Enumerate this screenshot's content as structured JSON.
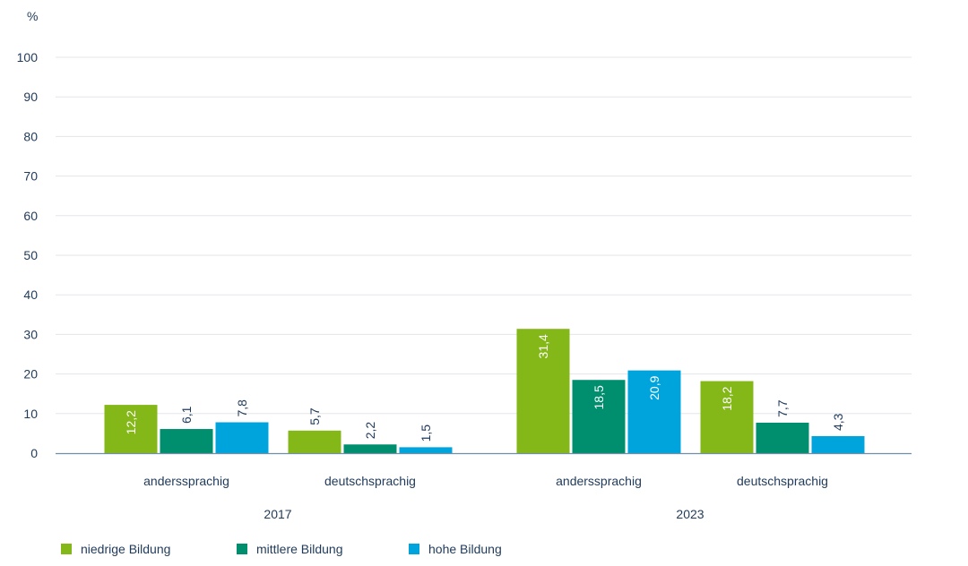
{
  "chart_data": {
    "type": "bar",
    "ylabel": "%",
    "ylim": [
      0,
      100
    ],
    "yticks": [
      0,
      10,
      20,
      30,
      40,
      50,
      60,
      70,
      80,
      90,
      100
    ],
    "grid": true,
    "groups": [
      {
        "label": "2017",
        "categories": [
          "anderssprachig",
          "deutschsprachig"
        ]
      },
      {
        "label": "2023",
        "categories": [
          "anderssprachig",
          "deutschsprachig"
        ]
      }
    ],
    "series": [
      {
        "name": "niedrige Bildung",
        "color": "#84b819",
        "values": [
          12.2,
          5.7,
          31.4,
          18.2
        ],
        "labels": [
          "12,2",
          "5,7",
          "31,4",
          "18,2"
        ]
      },
      {
        "name": "mittlere Bildung",
        "color": "#008f6e",
        "values": [
          6.1,
          2.2,
          18.5,
          7.7
        ],
        "labels": [
          "6,1",
          "2,2",
          "18,5",
          "7,7"
        ]
      },
      {
        "name": "hohe Bildung",
        "color": "#00a4dc",
        "values": [
          7.8,
          1.5,
          20.9,
          4.3
        ],
        "labels": [
          "7,8",
          "1,5",
          "20,9",
          "4,3"
        ]
      }
    ],
    "legend_position": "bottom-left"
  }
}
